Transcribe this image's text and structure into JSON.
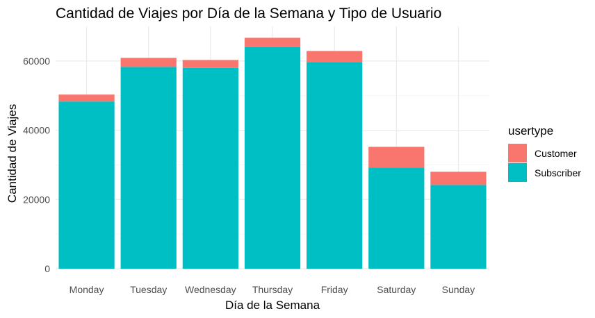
{
  "chart_data": {
    "type": "bar",
    "stacked": true,
    "title": "Cantidad de Viajes por Día de la Semana y Tipo de Usuario",
    "xlabel": "Día de la Semana",
    "ylabel": "Cantidad de Viajes",
    "categories": [
      "Monday",
      "Tuesday",
      "Wednesday",
      "Thursday",
      "Friday",
      "Saturday",
      "Sunday"
    ],
    "ylim": [
      0,
      70000
    ],
    "yticks": [
      0,
      20000,
      40000,
      60000
    ],
    "ytick_labels": [
      "0",
      "20000",
      "40000",
      "60000"
    ],
    "grid": true,
    "legend": {
      "title": "usertype",
      "position": "right"
    },
    "series": [
      {
        "name": "Subscriber",
        "color": "#00BFC4",
        "values": [
          48300,
          58300,
          58000,
          64000,
          59700,
          29200,
          24200
        ]
      },
      {
        "name": "Customer",
        "color": "#F8766D",
        "values": [
          2000,
          2600,
          2300,
          2700,
          3200,
          6000,
          3800
        ]
      }
    ]
  }
}
